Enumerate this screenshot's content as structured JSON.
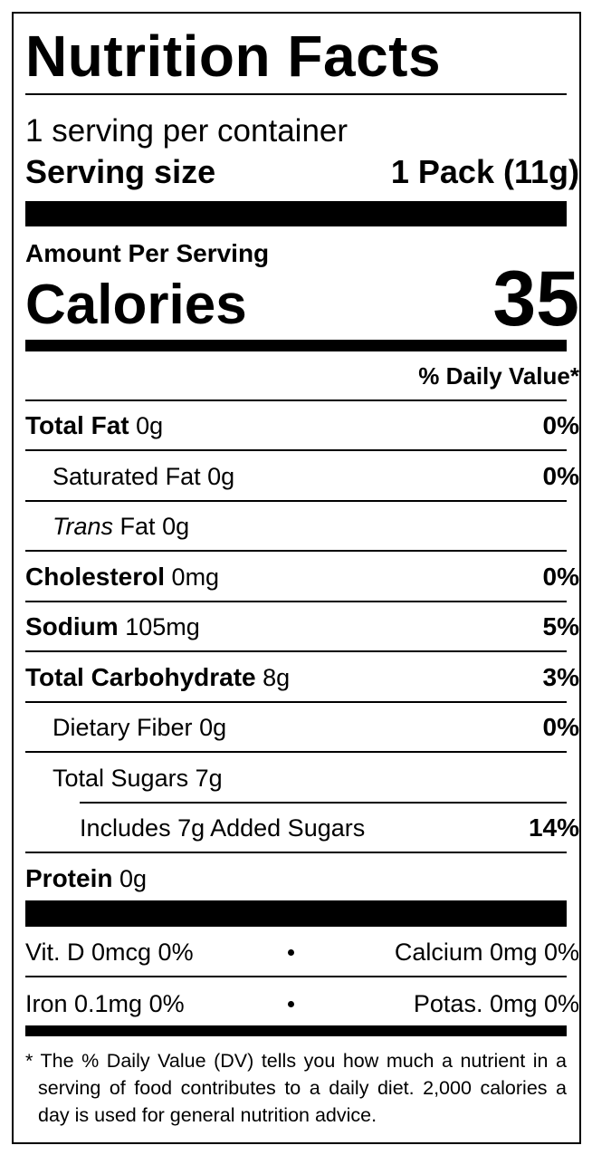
{
  "title": "Nutrition Facts",
  "servings": "1 serving per container",
  "serving_size": {
    "label": "Serving size",
    "value": "1 Pack (11g)"
  },
  "amount_per_serving": "Amount Per Serving",
  "calories": {
    "label": "Calories",
    "value": "35"
  },
  "daily_value_header": "% Daily Value*",
  "nutrients": [
    {
      "label": "Total Fat",
      "amount": "0g",
      "dv": "0%",
      "sub": [
        {
          "label": "Saturated Fat",
          "amount": "0g",
          "dv": "0%"
        },
        {
          "prefix": "Trans",
          "label": "Fat",
          "amount": "0g"
        }
      ]
    },
    {
      "label": "Cholesterol",
      "amount": "0mg",
      "dv": "0%"
    },
    {
      "label": "Sodium",
      "amount": "105mg",
      "dv": "5%"
    },
    {
      "label": "Total Carbohydrate",
      "amount": "8g",
      "dv": "3%",
      "sub": [
        {
          "label": "Dietary Fiber",
          "amount": "0g",
          "dv": "0%"
        },
        {
          "label": "Total Sugars",
          "amount": "7g",
          "sub": [
            {
              "label": "Includes 7g Added Sugars",
              "dv": "14%"
            }
          ]
        }
      ]
    },
    {
      "label": "Protein",
      "amount": "0g"
    }
  ],
  "micronutrients": [
    [
      "Vit. D 0mcg 0%",
      "Calcium 0mg 0%"
    ],
    [
      "Iron 0.1mg 0%",
      "Potas. 0mg 0%"
    ]
  ],
  "footnote": "* The % Daily Value (DV) tells you how much a nutrient in a serving of food contributes to a daily diet. 2,000 calories a day is used for general nutrition advice."
}
